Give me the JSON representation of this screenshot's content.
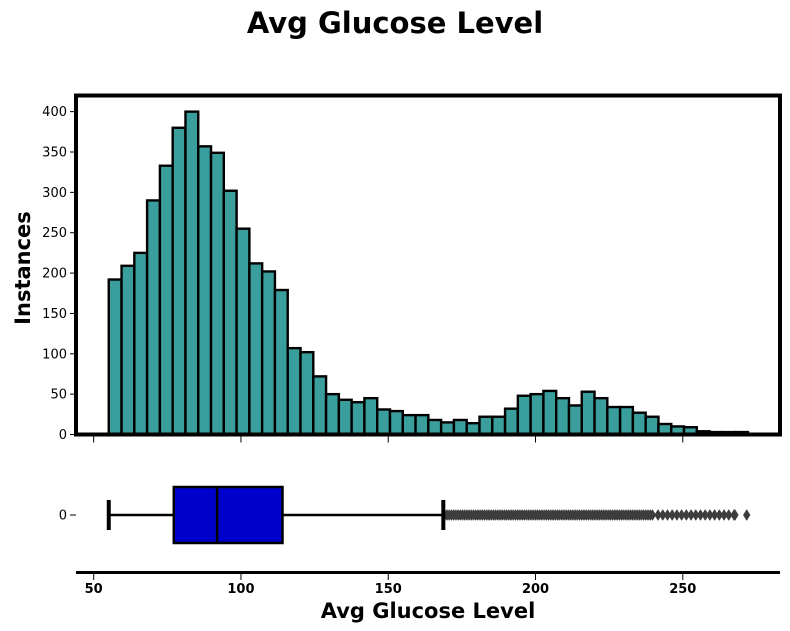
{
  "chart_data": [
    {
      "type": "histogram",
      "title": "Avg Glucose Level",
      "xlabel": "",
      "ylabel": "Instances",
      "xlim": [
        44,
        283
      ],
      "ylim": [
        0,
        420
      ],
      "yticks": [
        0,
        50,
        100,
        150,
        200,
        250,
        300,
        350,
        400
      ],
      "bin_start": 55.12,
      "bin_width": 4.34,
      "values": [
        192,
        209,
        225,
        290,
        333,
        380,
        400,
        357,
        349,
        302,
        255,
        212,
        202,
        179,
        107,
        102,
        72,
        50,
        43,
        40,
        45,
        31,
        29,
        24,
        24,
        18,
        15,
        18,
        14,
        22,
        22,
        32,
        48,
        50,
        54,
        45,
        36,
        53,
        45,
        34,
        34,
        27,
        22,
        13,
        10,
        9,
        4,
        3,
        3,
        3
      ],
      "bar_color": "#3a9f9c",
      "edge_color": "#000000",
      "grid": false
    },
    {
      "type": "box",
      "orientation": "horizontal",
      "xlabel": "Avg Glucose Level",
      "ytick_labels": [
        "0"
      ],
      "xticks": [
        50,
        100,
        150,
        200,
        250
      ],
      "whisker_low": 55.12,
      "q1": 77.2,
      "median": 91.9,
      "q3": 114.1,
      "whisker_high": 168.7,
      "outlier_range": [
        169.2,
        271.7
      ],
      "box_color": "#0000cd",
      "outlier_color": "#3d3d3d"
    }
  ]
}
